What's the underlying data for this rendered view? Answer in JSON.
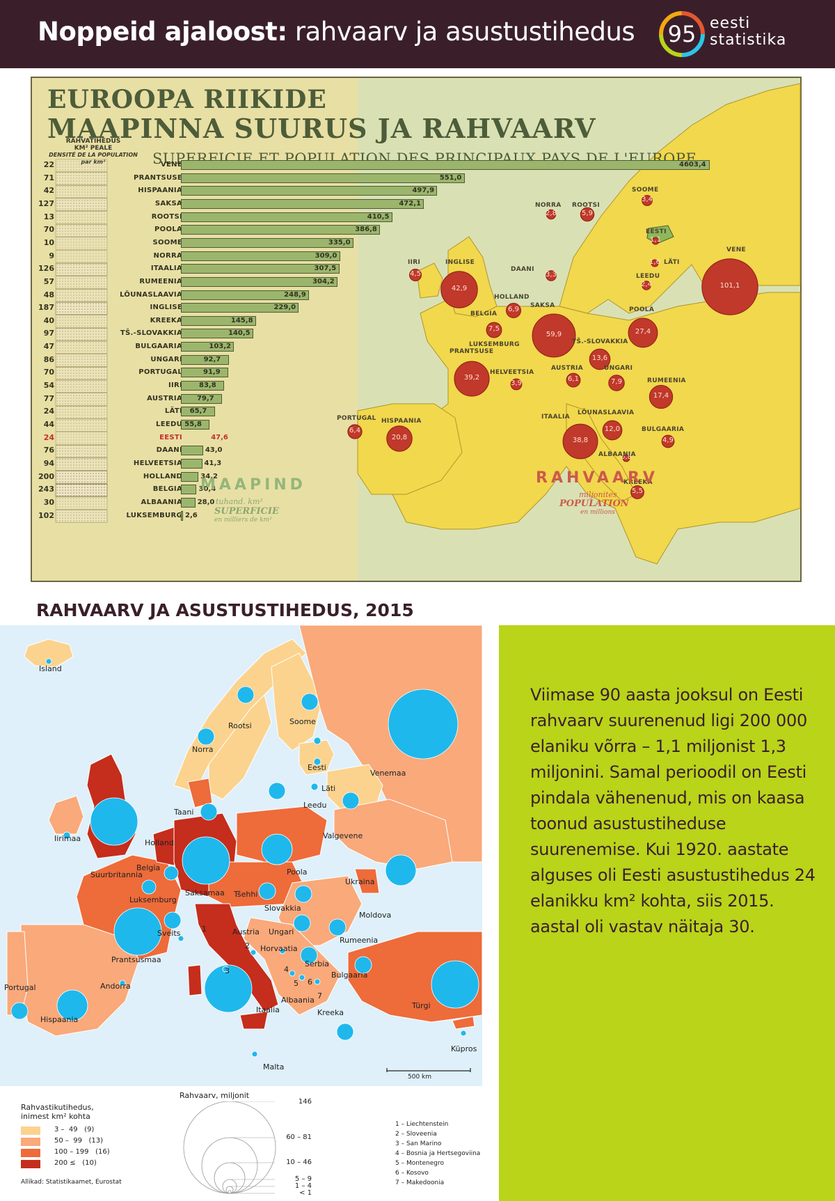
{
  "header": {
    "title_bold": "Noppeid ajaloost:",
    "title_rest": " rahvaarv ja asustustihedus",
    "logo_number": "95",
    "logo_line1": "eesti",
    "logo_line2": "statistika",
    "logo_ring_colors": [
      "#e4572e",
      "#f3a712",
      "#b9d419",
      "#2ec4e6"
    ]
  },
  "poster": {
    "title_line1": "EUROOPA RIIKIDE",
    "title_line2": "MAAPINNA SUURUS JA RAHVAARV",
    "subtitle": "SUPERFICIE ET POPULATION DES PRINCIPAUX PAYS DE L'EUROPE",
    "density_head_line1": "RAHVATIHEDUS",
    "density_head_line2": "KM² PEALE",
    "density_head_line3": "DENSITÉ DE LA POPULATION",
    "density_head_line4": "par km²",
    "area_label": "MAAPIND",
    "area_sub1": "tuhand. km²",
    "area_sub2": "SUPERFICIE",
    "area_sub3": "en milliers de km²",
    "pop_label": "RAHVAARV",
    "pop_sub1": "miljonites",
    "pop_sub2": "POPULATION",
    "pop_sub3": "en millions",
    "rows": [
      {
        "density": "22",
        "country": "VENE",
        "area": 4603.4,
        "label": "4603,4"
      },
      {
        "density": "71",
        "country": "PRANTSUSE",
        "area": 551.0,
        "label": "551,0"
      },
      {
        "density": "42",
        "country": "HISPAANIA",
        "area": 497.9,
        "label": "497,9"
      },
      {
        "density": "127",
        "country": "SAKSA",
        "area": 472.1,
        "label": "472,1"
      },
      {
        "density": "13",
        "country": "ROOTSI",
        "area": 410.5,
        "label": "410,5"
      },
      {
        "density": "70",
        "country": "POOLA",
        "area": 386.8,
        "label": "386,8"
      },
      {
        "density": "10",
        "country": "SOOME",
        "area": 335.0,
        "label": "335,0"
      },
      {
        "density": "9",
        "country": "NORRA",
        "area": 309.0,
        "label": "309,0"
      },
      {
        "density": "126",
        "country": "ITAALIA",
        "area": 307.5,
        "label": "307,5"
      },
      {
        "density": "57",
        "country": "RUMEENIA",
        "area": 304.2,
        "label": "304,2"
      },
      {
        "density": "48",
        "country": "LÕUNASLAAVIA",
        "area": 248.9,
        "label": "248,9"
      },
      {
        "density": "187",
        "country": "INGLISE",
        "area": 229.0,
        "label": "229,0"
      },
      {
        "density": "40",
        "country": "KREEKA",
        "area": 145.8,
        "label": "145,8"
      },
      {
        "density": "97",
        "country": "TŠ.-SLOVAKKIA",
        "area": 140.5,
        "label": "140,5"
      },
      {
        "density": "47",
        "country": "BULGAARIA",
        "area": 103.2,
        "label": "103,2"
      },
      {
        "density": "86",
        "country": "UNGARI",
        "area": 92.7,
        "label": "92,7"
      },
      {
        "density": "70",
        "country": "PORTUGAL",
        "area": 91.9,
        "label": "91,9"
      },
      {
        "density": "54",
        "country": "IIRI",
        "area": 83.8,
        "label": "83,8"
      },
      {
        "density": "77",
        "country": "AUSTRIA",
        "area": 79.7,
        "label": "79,7"
      },
      {
        "density": "24",
        "country": "LÄTI",
        "area": 65.7,
        "label": "65,7"
      },
      {
        "density": "44",
        "country": "LEEDU",
        "area": 55.8,
        "label": "55,8"
      },
      {
        "density": "24",
        "country": "EESTI",
        "area": 47.6,
        "label": "47,6",
        "highlight": true
      },
      {
        "density": "76",
        "country": "DAANI",
        "area": 43.0,
        "label": "43,0"
      },
      {
        "density": "94",
        "country": "HELVEETSIA",
        "area": 41.3,
        "label": "41,3"
      },
      {
        "density": "200",
        "country": "HOLLAND",
        "area": 34.2,
        "label": "34,2"
      },
      {
        "density": "243",
        "country": "BELGIA",
        "area": 30.4,
        "label": "30,4"
      },
      {
        "density": "30",
        "country": "ALBAANIA",
        "area": 28.0,
        "label": "28,0"
      },
      {
        "density": "102",
        "country": "LUKSEMBURG",
        "area": 2.6,
        "label": "2,6"
      }
    ],
    "map_labels": [
      "SOOME",
      "NORRA",
      "ROOTSI",
      "EESTI",
      "VENE",
      "LÄTI",
      "LEEDU",
      "IIRI",
      "INGLISE",
      "DAANI",
      "HOLLAND",
      "BELGIA",
      "SAKSA",
      "POOLA",
      "LUKSEMBURG",
      "PRANTSUSE",
      "TŠ.-SLOVAKKIA",
      "AUSTRIA",
      "UNGARI",
      "HELVEETSIA",
      "RUMEENIA",
      "LÕUNASLAAVIA",
      "PORTUGAL",
      "HISPAANIA",
      "ITAALIA",
      "BULGAARIA",
      "ALBAANIA",
      "KREEKA"
    ],
    "bubbles": [
      {
        "name": "VENE",
        "value": "101,1",
        "pop": 101.1
      },
      {
        "name": "INGLISE",
        "value": "42,9",
        "pop": 42.9
      },
      {
        "name": "SAKSA",
        "value": "59,9",
        "pop": 59.9
      },
      {
        "name": "PRANTSUSE",
        "value": "39,2",
        "pop": 39.2
      },
      {
        "name": "POOLA",
        "value": "27,4",
        "pop": 27.4
      },
      {
        "name": "ITAALIA",
        "value": "38,8",
        "pop": 38.8
      },
      {
        "name": "HISPAANIA",
        "value": "20,8",
        "pop": 20.8
      },
      {
        "name": "RUMEENIA",
        "value": "17,4",
        "pop": 17.4
      },
      {
        "name": "TŠ.-SLOVAKKIA",
        "value": "13,6",
        "pop": 13.6
      },
      {
        "name": "LÕUNASLAAVIA",
        "value": "12,0",
        "pop": 12.0
      },
      {
        "name": "UNGARI",
        "value": "7,9",
        "pop": 7.9
      },
      {
        "name": "BELGIA",
        "value": "7,5",
        "pop": 7.5
      },
      {
        "name": "HOLLAND",
        "value": "6,9",
        "pop": 6.9
      },
      {
        "name": "ROOTSI",
        "value": "5,9",
        "pop": 5.9
      },
      {
        "name": "KREEKA",
        "value": "5,5",
        "pop": 5.5
      },
      {
        "name": "AUSTRIA",
        "value": "6,1",
        "pop": 6.1
      },
      {
        "name": "PORTUGAL",
        "value": "6,4",
        "pop": 6.4
      },
      {
        "name": "BULGAARIA",
        "value": "4,9",
        "pop": 4.9
      },
      {
        "name": "HELVEETSIA",
        "value": "3,9",
        "pop": 3.9
      },
      {
        "name": "SOOME",
        "value": "3,4",
        "pop": 3.4
      },
      {
        "name": "IIRI",
        "value": "4,5",
        "pop": 4.5
      },
      {
        "name": "DAANI",
        "value": "3,3",
        "pop": 3.3
      },
      {
        "name": "NORRA",
        "value": "2,8",
        "pop": 2.8
      },
      {
        "name": "LEEDU",
        "value": "2,4",
        "pop": 2.4
      },
      {
        "name": "LÄTI",
        "value": "1,6",
        "pop": 1.6
      },
      {
        "name": "EESTI",
        "value": "1,1",
        "pop": 1.1
      },
      {
        "name": "ALBAANIA",
        "value": "0,8",
        "pop": 0.8
      }
    ]
  },
  "section_title": "RAHVAARV JA ASUSTUSTIHEDUS, 2015",
  "map": {
    "scale_label": "500 km",
    "labels": [
      "Island",
      "Norra",
      "Rootsi",
      "Soome",
      "Venemaa",
      "Eesti",
      "Läti",
      "Leedu",
      "Taani",
      "Iirimaa",
      "Suurbritannia",
      "Holland",
      "Belgia",
      "Valgevene",
      "Poola",
      "Ukraina",
      "Luksemburg",
      "Saksamaa",
      "Tšehhi",
      "Slovakkia",
      "Moldova",
      "Sveits",
      "Austria",
      "Ungari",
      "Rumeenia",
      "Prantsusmaa",
      "Horvaatia",
      "Serbia",
      "Bulgaaria",
      "Andorra",
      "Portugal",
      "Hispaania",
      "Itaalia",
      "Albaania",
      "Türgi",
      "Kreeka",
      "Küpros",
      "Malta",
      "1",
      "2",
      "3",
      "4",
      "5",
      "6",
      "7"
    ],
    "density_colors": [
      "#fbd38e",
      "#f9a97a",
      "#ee6b3a",
      "#c52d1c"
    ],
    "bubble_color": "#1fb8ec",
    "sea_color": "#dff0fa"
  },
  "legend": {
    "density_title_line1": "Rahvastikutihedus,",
    "density_title_line2": "inimest km² kohta",
    "density_classes": [
      {
        "range": "3 –  49",
        "count": "(9)"
      },
      {
        "range": "50 –  99",
        "count": "(13)"
      },
      {
        "range": "100 – 199",
        "count": "(16)"
      },
      {
        "range": "200 ≤",
        "count": "(10)"
      }
    ],
    "sources": "Allikad: Statistikaamet, Eurostat",
    "circles_title": "Rahvaarv, miljonit",
    "circle_values": [
      "146",
      "60 – 81",
      "10 – 46",
      "5 –  9",
      "1 –  4",
      "<  1"
    ],
    "small_countries": [
      "1 – Liechtenstein",
      "2 – Sloveenia",
      "3 – San Marino",
      "4 – Bosnia ja Hertsegoviina",
      "5 – Montenegro",
      "6 – Kosovo",
      "7 – Makedoonia"
    ]
  },
  "panel": {
    "text": "Viimase 90 aasta jooksul on Eesti rahvaarv suurenenud ligi 200 000 elaniku võrra – 1,1 miljonist 1,3 miljonini. Samal perioodil on Eesti pindala vähenenud, mis on kaasa toonud asustustiheduse suurenemise. Kui 1920. aastate alguses oli Eesti asustustihedus 24 elanikku km² kohta, siis 2015. aastal oli vastav näitaja 30.",
    "background": "#b9d419"
  }
}
